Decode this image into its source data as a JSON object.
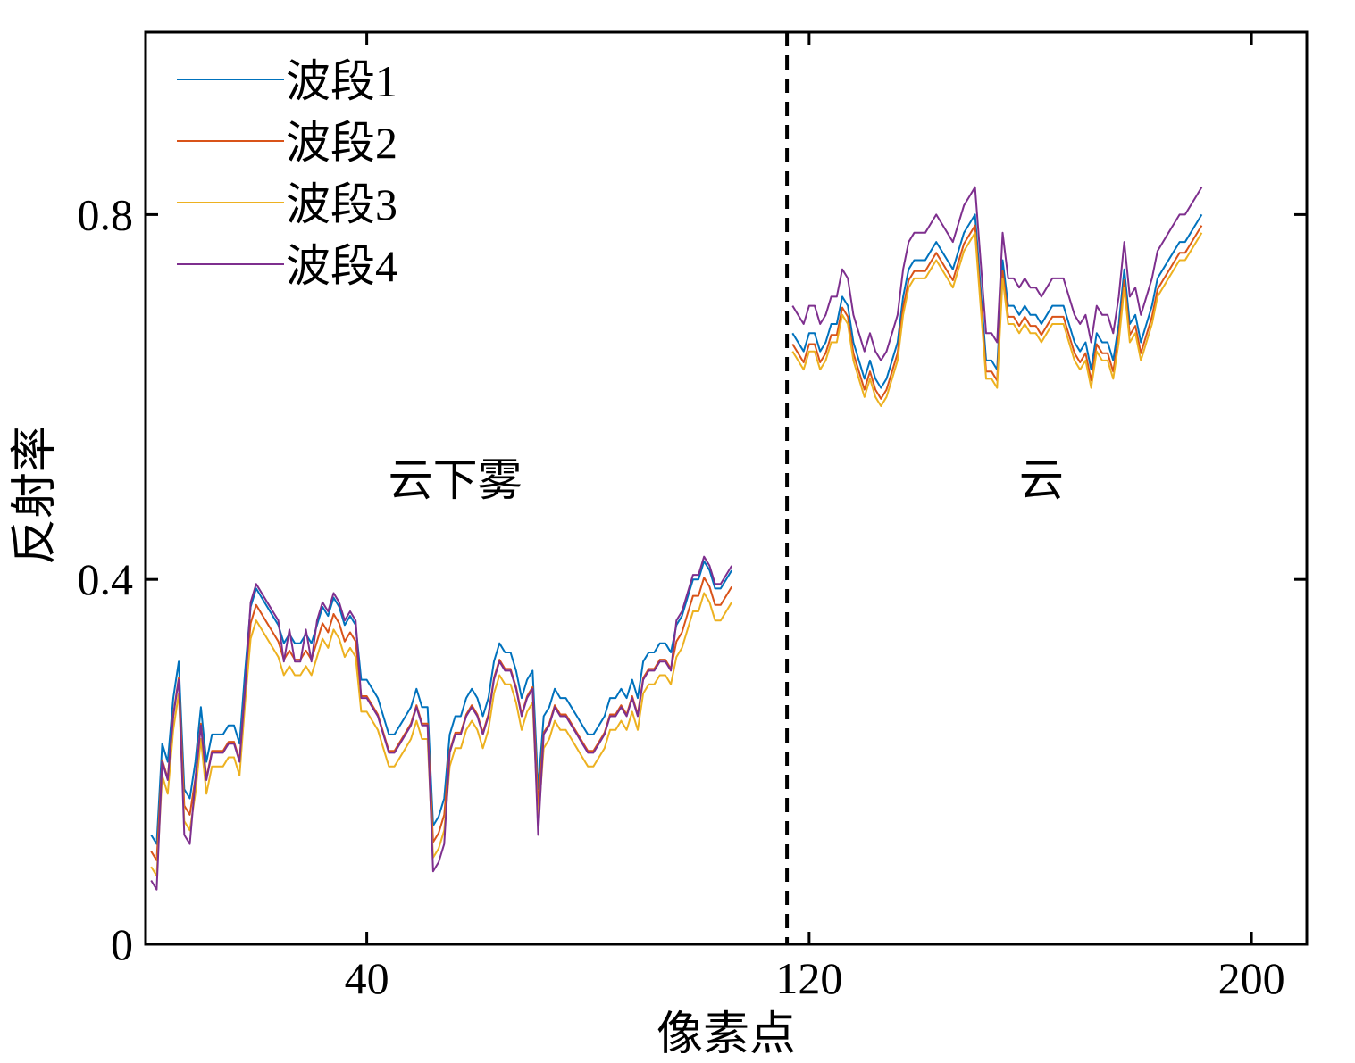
{
  "chart_data": {
    "type": "line",
    "title": "",
    "xlabel": "像素点",
    "ylabel": "反射率",
    "xlim": [
      0,
      210
    ],
    "ylim": [
      0,
      1.0
    ],
    "xticks": [
      40,
      120,
      200
    ],
    "xtick_labels": [
      "40",
      "120",
      "200"
    ],
    "yticks": [
      0,
      0.4,
      0.8
    ],
    "ytick_labels": [
      "0",
      "0.4",
      "0.8"
    ],
    "grid": false,
    "legend_position": "top-left",
    "divider_x": 116,
    "annotations": [
      {
        "text": "云下雾",
        "x": 56,
        "y": 0.51
      },
      {
        "text": "云",
        "x": 162,
        "y": 0.51
      }
    ],
    "segments": [
      [
        1,
        115
      ],
      [
        117,
        204
      ]
    ],
    "series": [
      {
        "name": "波段1",
        "color": "#0072BD"
      },
      {
        "name": "波段2",
        "color": "#D95319"
      },
      {
        "name": "波段3",
        "color": "#EDB120"
      },
      {
        "name": "波段4",
        "color": "#7E2F8E"
      }
    ],
    "band1_anchors": [
      [
        1,
        0.12
      ],
      [
        2,
        0.11
      ],
      [
        3,
        0.22
      ],
      [
        4,
        0.2
      ],
      [
        5,
        0.27
      ],
      [
        6,
        0.31
      ],
      [
        7,
        0.17
      ],
      [
        8,
        0.16
      ],
      [
        9,
        0.2
      ],
      [
        10,
        0.26
      ],
      [
        11,
        0.2
      ],
      [
        12,
        0.23
      ],
      [
        13,
        0.23
      ],
      [
        14,
        0.23
      ],
      [
        15,
        0.24
      ],
      [
        16,
        0.24
      ],
      [
        17,
        0.22
      ],
      [
        18,
        0.3
      ],
      [
        19,
        0.37
      ],
      [
        20,
        0.39
      ],
      [
        21,
        0.38
      ],
      [
        22,
        0.37
      ],
      [
        23,
        0.36
      ],
      [
        24,
        0.35
      ],
      [
        25,
        0.33
      ],
      [
        26,
        0.34
      ],
      [
        27,
        0.33
      ],
      [
        28,
        0.33
      ],
      [
        29,
        0.34
      ],
      [
        30,
        0.33
      ],
      [
        31,
        0.35
      ],
      [
        32,
        0.37
      ],
      [
        33,
        0.36
      ],
      [
        34,
        0.38
      ],
      [
        35,
        0.37
      ],
      [
        36,
        0.35
      ],
      [
        37,
        0.36
      ],
      [
        38,
        0.35
      ],
      [
        39,
        0.29
      ],
      [
        40,
        0.29
      ],
      [
        41,
        0.28
      ],
      [
        42,
        0.27
      ],
      [
        43,
        0.25
      ],
      [
        44,
        0.23
      ],
      [
        45,
        0.23
      ],
      [
        46,
        0.24
      ],
      [
        47,
        0.25
      ],
      [
        48,
        0.26
      ],
      [
        49,
        0.28
      ],
      [
        50,
        0.26
      ],
      [
        51,
        0.26
      ],
      [
        52,
        0.13
      ],
      [
        53,
        0.14
      ],
      [
        54,
        0.16
      ],
      [
        55,
        0.23
      ],
      [
        56,
        0.25
      ],
      [
        57,
        0.25
      ],
      [
        58,
        0.27
      ],
      [
        59,
        0.28
      ],
      [
        60,
        0.27
      ],
      [
        61,
        0.25
      ],
      [
        62,
        0.27
      ],
      [
        63,
        0.31
      ],
      [
        64,
        0.33
      ],
      [
        65,
        0.32
      ],
      [
        66,
        0.32
      ],
      [
        67,
        0.3
      ],
      [
        68,
        0.27
      ],
      [
        69,
        0.29
      ],
      [
        70,
        0.3
      ],
      [
        71,
        0.17
      ],
      [
        72,
        0.25
      ],
      [
        73,
        0.26
      ],
      [
        74,
        0.28
      ],
      [
        75,
        0.27
      ],
      [
        76,
        0.27
      ],
      [
        77,
        0.26
      ],
      [
        78,
        0.25
      ],
      [
        79,
        0.24
      ],
      [
        80,
        0.23
      ],
      [
        81,
        0.23
      ],
      [
        82,
        0.24
      ],
      [
        83,
        0.25
      ],
      [
        84,
        0.27
      ],
      [
        85,
        0.27
      ],
      [
        86,
        0.28
      ],
      [
        87,
        0.27
      ],
      [
        88,
        0.29
      ],
      [
        89,
        0.27
      ],
      [
        90,
        0.31
      ],
      [
        91,
        0.32
      ],
      [
        92,
        0.32
      ],
      [
        93,
        0.33
      ],
      [
        94,
        0.33
      ],
      [
        95,
        0.32
      ],
      [
        96,
        0.35
      ],
      [
        97,
        0.36
      ],
      [
        98,
        0.38
      ],
      [
        99,
        0.4
      ],
      [
        100,
        0.4
      ],
      [
        101,
        0.42
      ],
      [
        102,
        0.41
      ],
      [
        103,
        0.39
      ],
      [
        104,
        0.39
      ],
      [
        105,
        0.4
      ],
      [
        106,
        0.41
      ],
      [
        117,
        0.67
      ],
      [
        118,
        0.66
      ],
      [
        119,
        0.65
      ],
      [
        120,
        0.67
      ],
      [
        121,
        0.67
      ],
      [
        122,
        0.65
      ],
      [
        123,
        0.66
      ],
      [
        124,
        0.68
      ],
      [
        125,
        0.68
      ],
      [
        126,
        0.71
      ],
      [
        127,
        0.7
      ],
      [
        128,
        0.66
      ],
      [
        129,
        0.64
      ],
      [
        130,
        0.62
      ],
      [
        131,
        0.64
      ],
      [
        132,
        0.62
      ],
      [
        133,
        0.61
      ],
      [
        134,
        0.62
      ],
      [
        135,
        0.64
      ],
      [
        136,
        0.66
      ],
      [
        137,
        0.71
      ],
      [
        138,
        0.74
      ],
      [
        139,
        0.75
      ],
      [
        140,
        0.75
      ],
      [
        141,
        0.75
      ],
      [
        142,
        0.76
      ],
      [
        143,
        0.77
      ],
      [
        144,
        0.76
      ],
      [
        145,
        0.75
      ],
      [
        146,
        0.74
      ],
      [
        147,
        0.76
      ],
      [
        148,
        0.78
      ],
      [
        149,
        0.79
      ],
      [
        150,
        0.8
      ],
      [
        151,
        0.72
      ],
      [
        152,
        0.64
      ],
      [
        153,
        0.64
      ],
      [
        154,
        0.63
      ],
      [
        155,
        0.75
      ],
      [
        156,
        0.7
      ],
      [
        157,
        0.7
      ],
      [
        158,
        0.69
      ],
      [
        159,
        0.7
      ],
      [
        160,
        0.69
      ],
      [
        161,
        0.69
      ],
      [
        162,
        0.68
      ],
      [
        163,
        0.69
      ],
      [
        164,
        0.7
      ],
      [
        165,
        0.7
      ],
      [
        166,
        0.7
      ],
      [
        167,
        0.68
      ],
      [
        168,
        0.66
      ],
      [
        169,
        0.65
      ],
      [
        170,
        0.66
      ],
      [
        171,
        0.63
      ],
      [
        172,
        0.67
      ],
      [
        173,
        0.66
      ],
      [
        174,
        0.66
      ],
      [
        175,
        0.64
      ],
      [
        176,
        0.68
      ],
      [
        177,
        0.74
      ],
      [
        178,
        0.68
      ],
      [
        179,
        0.69
      ],
      [
        180,
        0.66
      ],
      [
        181,
        0.68
      ],
      [
        182,
        0.7
      ],
      [
        183,
        0.73
      ],
      [
        184,
        0.74
      ],
      [
        185,
        0.75
      ],
      [
        186,
        0.76
      ],
      [
        187,
        0.77
      ],
      [
        188,
        0.77
      ],
      [
        189,
        0.78
      ],
      [
        190,
        0.79
      ],
      [
        191,
        0.8
      ]
    ],
    "band_offsets_note": ""
  },
  "legend": {
    "band1": "波段1",
    "band2": "波段2",
    "band3": "波段3",
    "band4": "波段4"
  }
}
